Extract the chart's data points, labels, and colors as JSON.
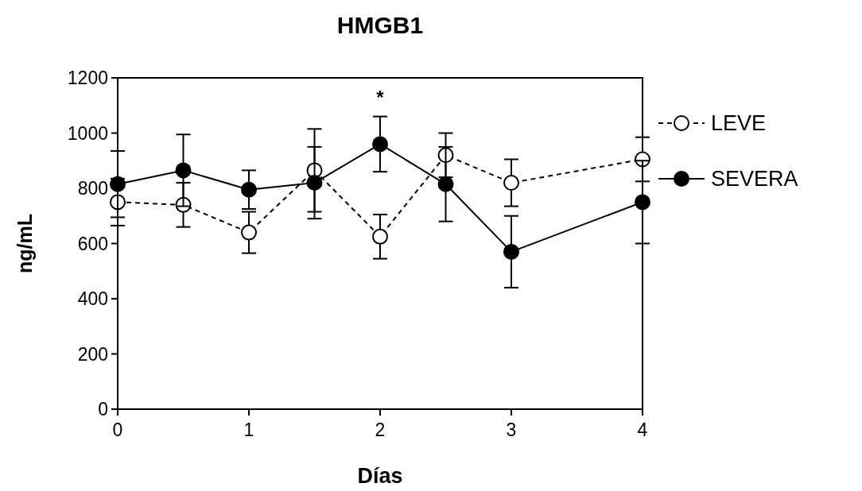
{
  "chart_data": {
    "type": "line",
    "title": "HMGB1",
    "xlabel": "Días",
    "ylabel": "ng/mL",
    "xlim": [
      0,
      4
    ],
    "xticks": [
      0,
      1,
      2,
      3,
      4
    ],
    "ylim": [
      0,
      1200
    ],
    "yticks": [
      0,
      200,
      400,
      600,
      800,
      1000,
      1200
    ],
    "grid": false,
    "legend": "right",
    "marker": "circle",
    "x": [
      0,
      0.5,
      1,
      1.5,
      2,
      2.5,
      3,
      4
    ],
    "series": [
      {
        "name": "LEVE",
        "color": "#000000",
        "line_style": "dashed",
        "values": [
          750,
          740,
          640,
          865,
          625,
          920,
          820,
          905
        ],
        "errors": [
          85,
          80,
          75,
          150,
          80,
          80,
          85,
          80
        ]
      },
      {
        "name": "SEVERA",
        "color": "#000000",
        "line_style": "solid",
        "values": [
          815,
          865,
          795,
          820,
          960,
          815,
          570,
          750
        ],
        "errors": [
          120,
          130,
          70,
          130,
          100,
          135,
          130,
          150
        ]
      }
    ],
    "annotations": [
      "*"
    ]
  }
}
